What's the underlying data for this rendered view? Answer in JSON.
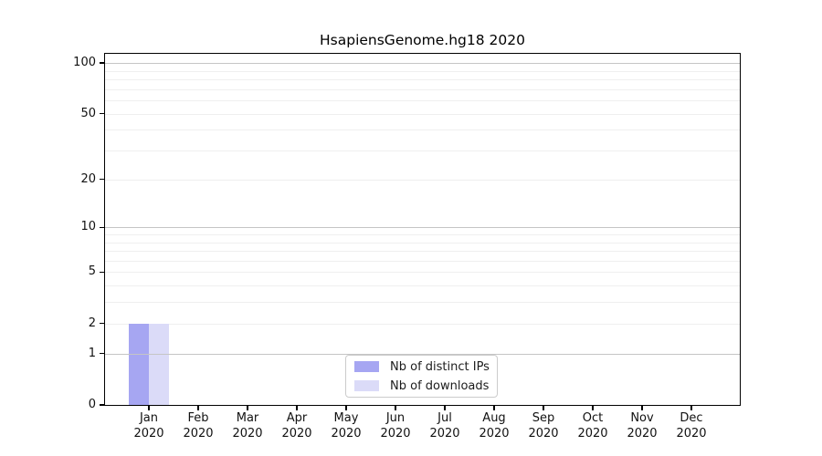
{
  "chart_data": {
    "type": "bar",
    "title": "HsapiensGenome.hg18 2020",
    "categories": [
      "Jan",
      "Feb",
      "Mar",
      "Apr",
      "May",
      "Jun",
      "Jul",
      "Aug",
      "Sep",
      "Oct",
      "Nov",
      "Dec"
    ],
    "category_sublabel": "2020",
    "series": [
      {
        "name": "Nb of distinct IPs",
        "color": "#a6a6f2",
        "values": [
          2,
          0,
          0,
          0,
          0,
          0,
          0,
          0,
          0,
          0,
          0,
          0
        ]
      },
      {
        "name": "Nb of downloads",
        "color": "#dbdbf8",
        "values": [
          2,
          0,
          0,
          0,
          0,
          0,
          0,
          0,
          0,
          0,
          0,
          0
        ]
      }
    ],
    "yticks": [
      0,
      1,
      2,
      5,
      10,
      20,
      50,
      100
    ],
    "minor_grid_values": [
      2,
      3,
      4,
      5,
      6,
      7,
      8,
      9,
      20,
      30,
      40,
      50,
      60,
      70,
      80,
      90
    ],
    "major_grid_values": [
      1,
      10,
      100
    ],
    "scale": "log1p",
    "ylim": [
      0,
      100
    ],
    "xlabel": "",
    "ylabel": "",
    "grid": true,
    "legend_position": "lower-center"
  }
}
